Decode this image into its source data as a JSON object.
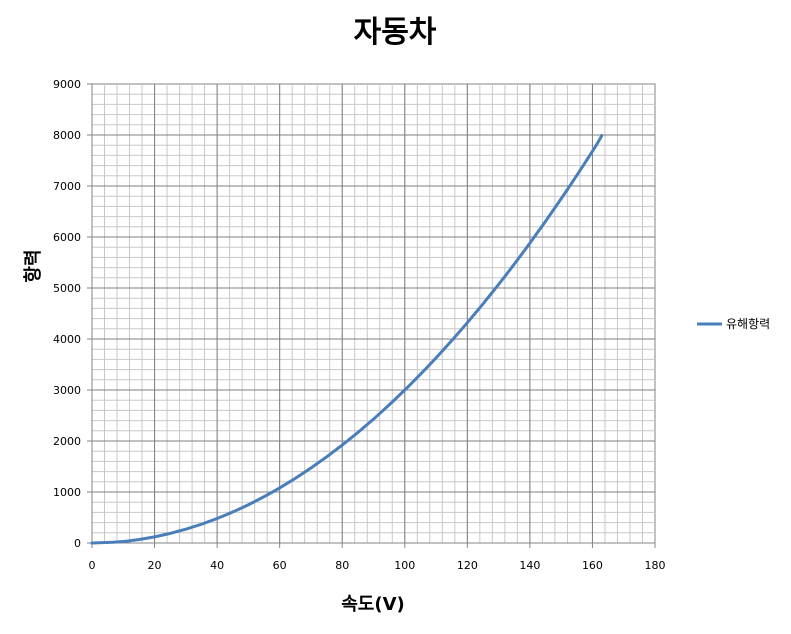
{
  "chart_data": {
    "type": "line",
    "title": "자동차",
    "xlabel": "속도(V)",
    "ylabel": "항력",
    "xlim": [
      0,
      180
    ],
    "ylim": [
      0,
      9000
    ],
    "xticks": [
      0,
      20,
      40,
      60,
      80,
      100,
      120,
      140,
      160,
      180
    ],
    "yticks": [
      0,
      1000,
      2000,
      3000,
      4000,
      5000,
      6000,
      7000,
      8000,
      9000
    ],
    "grid": true,
    "minor_grid": true,
    "legend_position": "right",
    "series": [
      {
        "name": "유해항력",
        "color": "#4a7ebb",
        "x": [
          0,
          10,
          20,
          30,
          40,
          50,
          60,
          70,
          80,
          90,
          100,
          110,
          120,
          130,
          140,
          150,
          160,
          163
        ],
        "y": [
          0,
          30,
          120,
          270,
          480,
          750,
          1080,
          1470,
          1920,
          2430,
          3000,
          3630,
          4320,
          5070,
          5880,
          6750,
          7680,
          7990
        ]
      }
    ]
  }
}
